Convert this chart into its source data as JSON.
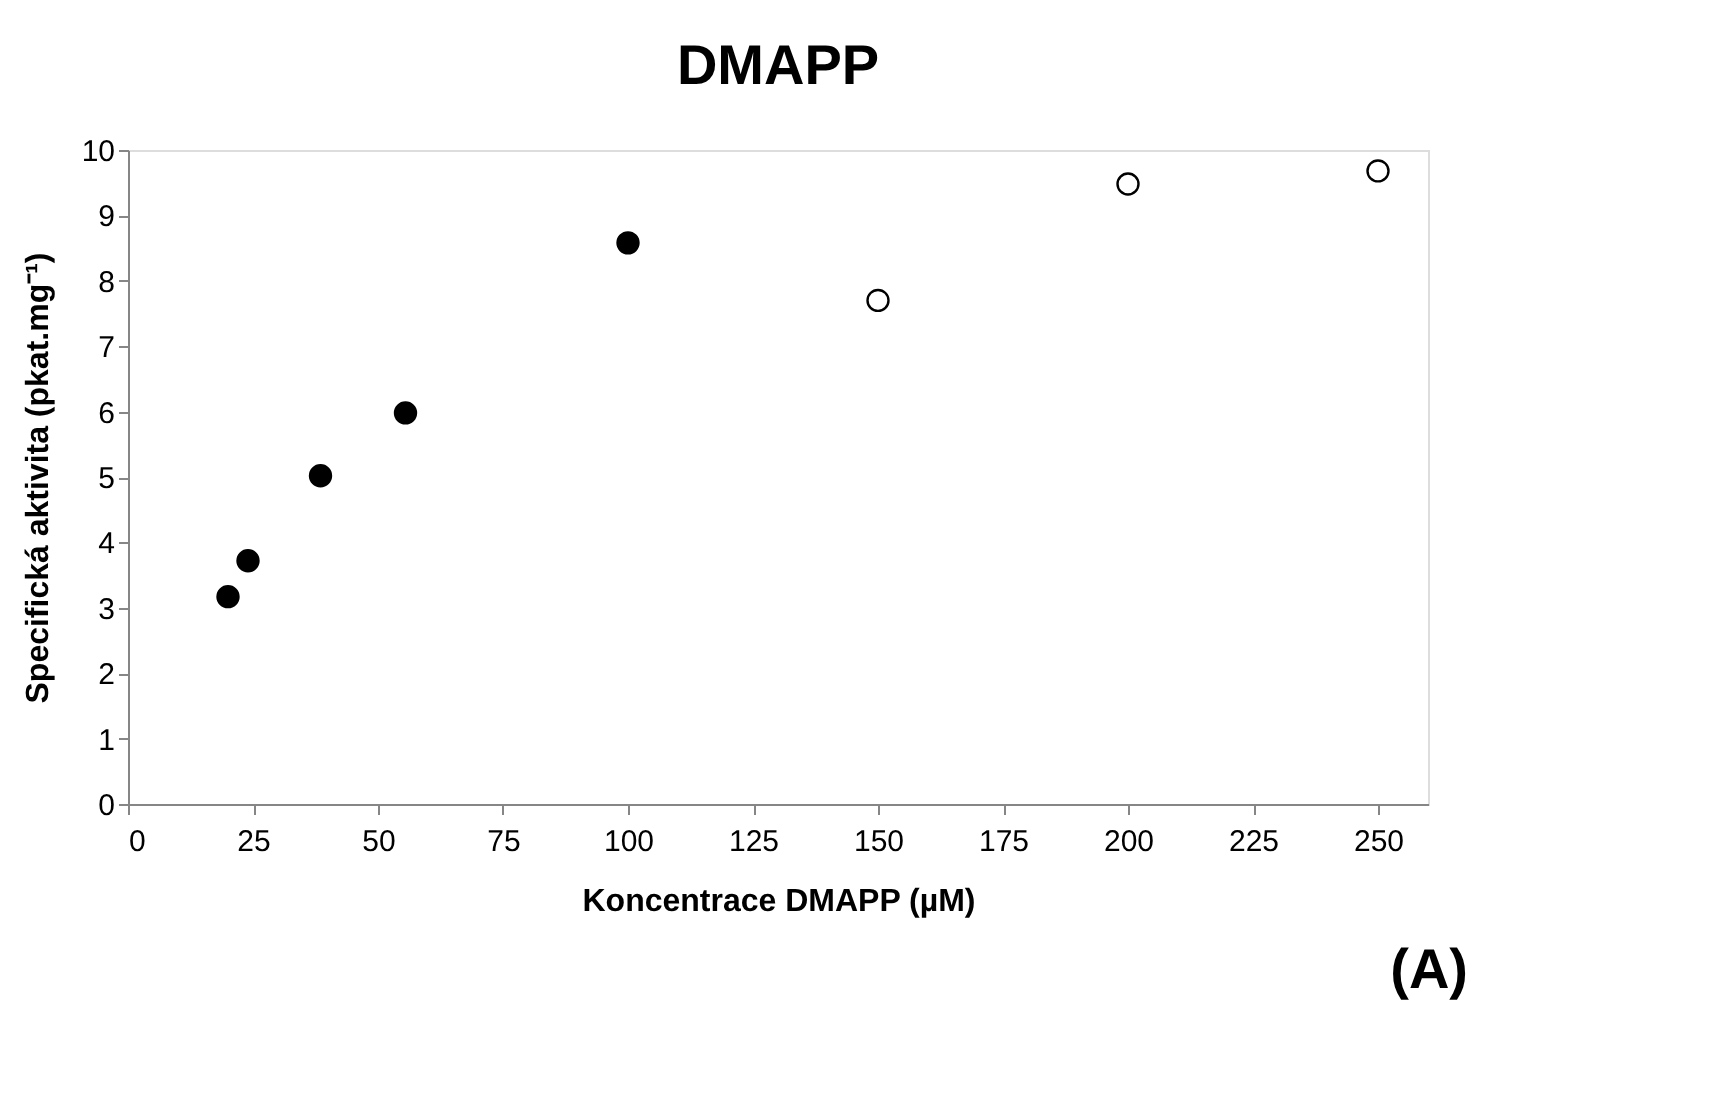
{
  "chart_data": {
    "type": "scatter",
    "title": "DMAPP",
    "xlabel": "Koncentrace DMAPP (µM)",
    "ylabel": "Specifická aktivita (pkat.mg⁻¹)",
    "annotations": [
      "(A)"
    ],
    "series": [
      {
        "color": "#000000",
        "x": [
          20,
          24,
          38.5,
          55.5,
          100
        ],
        "values": [
          3.17,
          3.72,
          5.02,
          5.98,
          8.58
        ]
      },
      {
        "color": "#ffffff",
        "x": [
          150,
          200,
          250
        ],
        "values": [
          7.7,
          9.48,
          9.68
        ]
      }
    ],
    "xlim": [
      0,
      260
    ],
    "xticks": [
      0,
      25,
      50,
      75,
      100,
      125,
      150,
      175,
      200,
      225,
      250
    ],
    "ylim": [
      0,
      10
    ],
    "yticks": [
      0,
      1,
      2,
      3,
      4,
      5,
      6,
      7,
      8,
      9,
      10
    ],
    "marker": "circle",
    "grid": false
  }
}
